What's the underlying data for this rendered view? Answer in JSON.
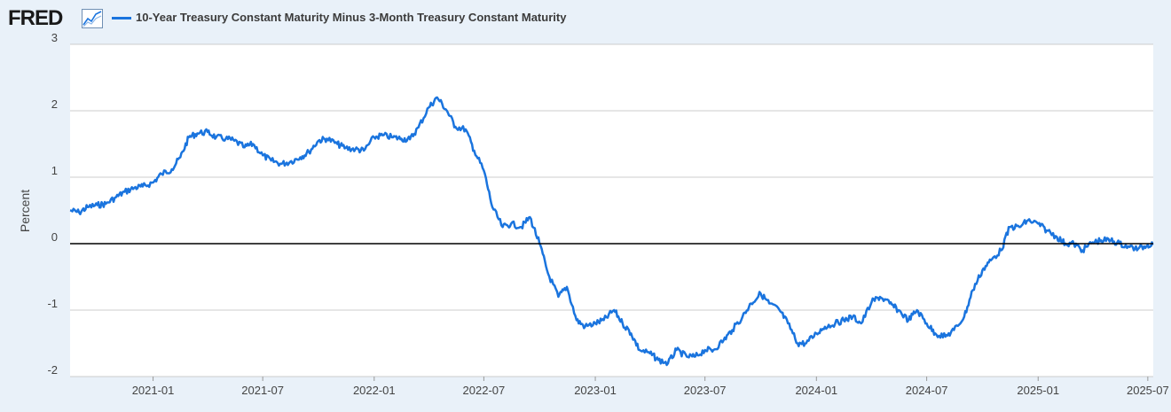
{
  "brand": {
    "logo_text": "FRED",
    "logo_icon": "trend-chart-icon"
  },
  "chart_data": {
    "type": "line",
    "title": "",
    "ylabel": "Percent",
    "xlabel": "",
    "ylim": [
      -2,
      3
    ],
    "y_ticks": [
      3,
      2,
      1,
      0,
      -1,
      -2
    ],
    "y_tick_labels": [
      "3",
      "2",
      "1",
      "0",
      "-1",
      "-2"
    ],
    "x_ticks": [
      "2021-01",
      "2021-07",
      "2022-01",
      "2022-07",
      "2023-01",
      "2023-07",
      "2024-01",
      "2024-07",
      "2025-01",
      "2025-07"
    ],
    "xlim": [
      "2020-08-17",
      "2025-07-10"
    ],
    "grid": "horizontal",
    "zero_line": true,
    "legend_position": "top-left",
    "colors": {
      "series": "#1a74de",
      "grid": "#cccccc",
      "zero_line": "#000000",
      "plot_bg": "#ffffff",
      "page_bg": "#e9f1f9"
    },
    "series": [
      {
        "name": "10-Year Treasury Constant Maturity Minus 3-Month Treasury Constant Maturity",
        "x": [
          "2020-08-17",
          "2020-09-01",
          "2020-09-15",
          "2020-10-01",
          "2020-10-15",
          "2020-11-01",
          "2020-11-15",
          "2020-12-01",
          "2020-12-15",
          "2021-01-01",
          "2021-01-15",
          "2021-02-01",
          "2021-02-15",
          "2021-03-01",
          "2021-03-15",
          "2021-04-01",
          "2021-04-15",
          "2021-05-01",
          "2021-05-15",
          "2021-06-01",
          "2021-06-15",
          "2021-07-01",
          "2021-07-15",
          "2021-08-01",
          "2021-08-15",
          "2021-09-01",
          "2021-09-15",
          "2021-10-01",
          "2021-10-15",
          "2021-11-01",
          "2021-11-15",
          "2021-12-01",
          "2021-12-15",
          "2022-01-01",
          "2022-01-15",
          "2022-02-01",
          "2022-02-15",
          "2022-03-01",
          "2022-03-15",
          "2022-04-01",
          "2022-04-15",
          "2022-05-01",
          "2022-05-15",
          "2022-06-01",
          "2022-06-15",
          "2022-07-01",
          "2022-07-15",
          "2022-08-01",
          "2022-08-15",
          "2022-09-01",
          "2022-09-15",
          "2022-10-01",
          "2022-10-15",
          "2022-11-01",
          "2022-11-15",
          "2022-12-01",
          "2022-12-15",
          "2023-01-01",
          "2023-01-15",
          "2023-02-01",
          "2023-02-15",
          "2023-03-01",
          "2023-03-15",
          "2023-04-01",
          "2023-04-15",
          "2023-05-01",
          "2023-05-15",
          "2023-06-01",
          "2023-06-15",
          "2023-07-01",
          "2023-07-15",
          "2023-08-01",
          "2023-08-15",
          "2023-09-01",
          "2023-09-15",
          "2023-10-01",
          "2023-10-15",
          "2023-11-01",
          "2023-11-15",
          "2023-12-01",
          "2023-12-15",
          "2024-01-01",
          "2024-01-15",
          "2024-02-01",
          "2024-02-15",
          "2024-03-01",
          "2024-03-15",
          "2024-04-01",
          "2024-04-15",
          "2024-05-01",
          "2024-05-15",
          "2024-06-01",
          "2024-06-15",
          "2024-07-01",
          "2024-07-15",
          "2024-08-01",
          "2024-08-15",
          "2024-09-01",
          "2024-09-15",
          "2024-10-01",
          "2024-10-15",
          "2024-11-01",
          "2024-11-15",
          "2024-12-01",
          "2024-12-15",
          "2025-01-01",
          "2025-01-15",
          "2025-02-01",
          "2025-02-15",
          "2025-03-01",
          "2025-03-15",
          "2025-04-01",
          "2025-04-15",
          "2025-05-01",
          "2025-05-15",
          "2025-06-01",
          "2025-06-15",
          "2025-07-01",
          "2025-07-10"
        ],
        "values": [
          0.5,
          0.47,
          0.55,
          0.58,
          0.6,
          0.7,
          0.78,
          0.84,
          0.86,
          0.92,
          1.05,
          1.12,
          1.3,
          1.6,
          1.66,
          1.68,
          1.6,
          1.58,
          1.55,
          1.45,
          1.5,
          1.33,
          1.25,
          1.2,
          1.23,
          1.3,
          1.38,
          1.55,
          1.58,
          1.5,
          1.44,
          1.42,
          1.4,
          1.6,
          1.63,
          1.6,
          1.58,
          1.57,
          1.75,
          2.05,
          2.2,
          2.0,
          1.76,
          1.72,
          1.4,
          1.1,
          0.55,
          0.25,
          0.3,
          0.25,
          0.4,
          0.0,
          -0.45,
          -0.8,
          -0.65,
          -1.15,
          -1.25,
          -1.2,
          -1.15,
          -1.0,
          -1.2,
          -1.35,
          -1.6,
          -1.65,
          -1.75,
          -1.8,
          -1.6,
          -1.7,
          -1.7,
          -1.6,
          -1.6,
          -1.45,
          -1.3,
          -1.1,
          -0.9,
          -0.75,
          -0.9,
          -1.0,
          -1.2,
          -1.5,
          -1.5,
          -1.35,
          -1.25,
          -1.2,
          -1.15,
          -1.1,
          -1.2,
          -0.88,
          -0.8,
          -0.9,
          -1.0,
          -1.15,
          -1.0,
          -1.2,
          -1.35,
          -1.4,
          -1.3,
          -1.1,
          -0.7,
          -0.4,
          -0.25,
          -0.1,
          0.25,
          0.25,
          0.35,
          0.3,
          0.2,
          0.1,
          0.0,
          0.0,
          -0.1,
          0.02,
          0.05,
          0.05,
          0.0,
          -0.05,
          -0.08,
          -0.02,
          0.0
        ]
      }
    ]
  }
}
